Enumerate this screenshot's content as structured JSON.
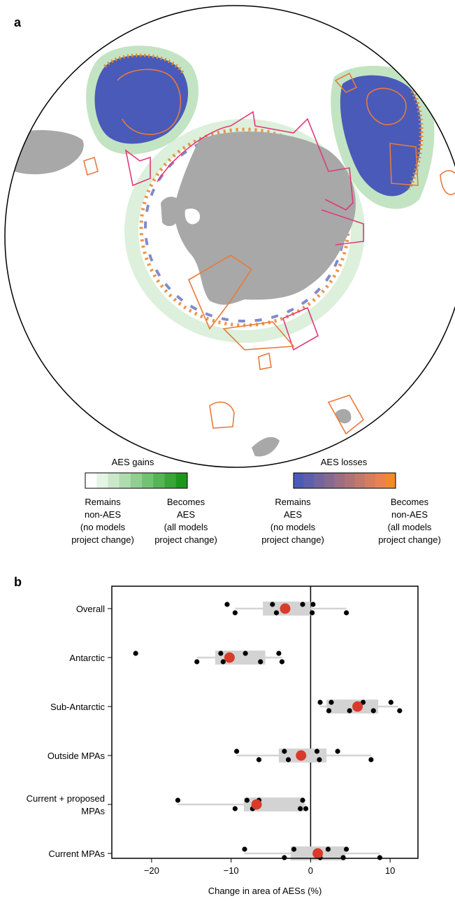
{
  "panel_a": {
    "label": "a",
    "legend": {
      "gains": {
        "title": "AES gains",
        "colors": [
          "#ffffff",
          "#e5f4e5",
          "#cbe8cb",
          "#aedcae",
          "#90cf90",
          "#73c273",
          "#55b455",
          "#38a638",
          "#1b981b"
        ],
        "left_label": [
          "Remains",
          "non-AES",
          "(no models",
          "project change)"
        ],
        "right_label": [
          "Becomes",
          "AES",
          "(all models",
          "project change)"
        ]
      },
      "losses": {
        "title": "AES losses",
        "colors": [
          "#4a5ab8",
          "#5e5fab",
          "#72649e",
          "#866991",
          "#9a6e84",
          "#ae7377",
          "#c2786a",
          "#d67d5d",
          "#ea8250",
          "#f28a2a"
        ],
        "left_label": [
          "Remains",
          "AES",
          "(no models",
          "project change)"
        ],
        "right_label": [
          "Becomes",
          "non-AES",
          "(all models",
          "project change)"
        ]
      }
    },
    "colors": {
      "land": "#a8a8a8",
      "aes_core": "#4a5ab8",
      "gain": "#6fbf6f",
      "loss": "#e8832a",
      "mpa_current": "#e0397a",
      "mpa_proposed": "#e87a3c"
    }
  },
  "panel_b": {
    "label": "b"
  },
  "chart_data": {
    "type": "scatter",
    "xlabel": "Change in area of AESs (%)",
    "xlim": [
      -25,
      13.5
    ],
    "xticks": [
      -20,
      -10,
      0,
      10
    ],
    "xtick_labels": [
      "−20",
      "−10",
      "0",
      "10"
    ],
    "categories": [
      "Overall",
      "Antarctic",
      "Sub-Antarctic",
      "Outside MPAs",
      "Current + proposed MPAs",
      "Current MPAs"
    ],
    "category_labels": [
      [
        "Overall"
      ],
      [
        "Antarctic"
      ],
      [
        "Sub-Antarctic"
      ],
      [
        "Outside MPAs"
      ],
      [
        "Current + proposed",
        "MPAs"
      ],
      [
        "Current MPAs"
      ]
    ],
    "colors": {
      "points": "#000000",
      "mean": "#d93a2b",
      "box": "#d3d3d3",
      "whisker": "#d3d3d3"
    },
    "series": [
      {
        "points": [
          -10.5,
          -9.5,
          -4.8,
          -4.3,
          -1.0,
          0.2,
          0.3,
          4.5
        ],
        "mean": -3.2,
        "box": [
          -6.0,
          0.0
        ],
        "whiskers": [
          -9.5,
          4.5
        ]
      },
      {
        "points": [
          -22.0,
          -14.3,
          -11.3,
          -11.0,
          -8.2,
          -6.3,
          -4.0,
          -3.6
        ],
        "mean": -10.2,
        "box": [
          -12.0,
          -5.7
        ],
        "whiskers": [
          -14.3,
          -3.6
        ]
      },
      {
        "points": [
          1.2,
          2.3,
          2.6,
          4.9,
          6.6,
          7.9,
          10.1,
          11.2
        ],
        "mean": 5.9,
        "box": [
          2.0,
          8.5
        ],
        "whiskers": [
          1.2,
          11.0
        ]
      },
      {
        "points": [
          -9.3,
          -6.5,
          -3.3,
          -2.8,
          0.8,
          1.1,
          3.4,
          7.6
        ],
        "mean": -1.2,
        "box": [
          -4.0,
          2.0
        ],
        "whiskers": [
          -9.3,
          7.6
        ]
      },
      {
        "points": [
          -16.7,
          -9.5,
          -8.0,
          -7.3,
          -6.5,
          -1.3,
          -1.0,
          -0.6
        ],
        "mean": -6.8,
        "box": [
          -8.4,
          -0.8
        ],
        "whiskers": [
          -16.7,
          -0.6
        ]
      },
      {
        "points": [
          -8.3,
          -3.3,
          -2.1,
          1.2,
          2.2,
          4.1,
          4.5,
          8.7
        ],
        "mean": 0.9,
        "box": [
          -2.5,
          4.4
        ],
        "whiskers": [
          -8.3,
          8.7
        ]
      }
    ]
  }
}
